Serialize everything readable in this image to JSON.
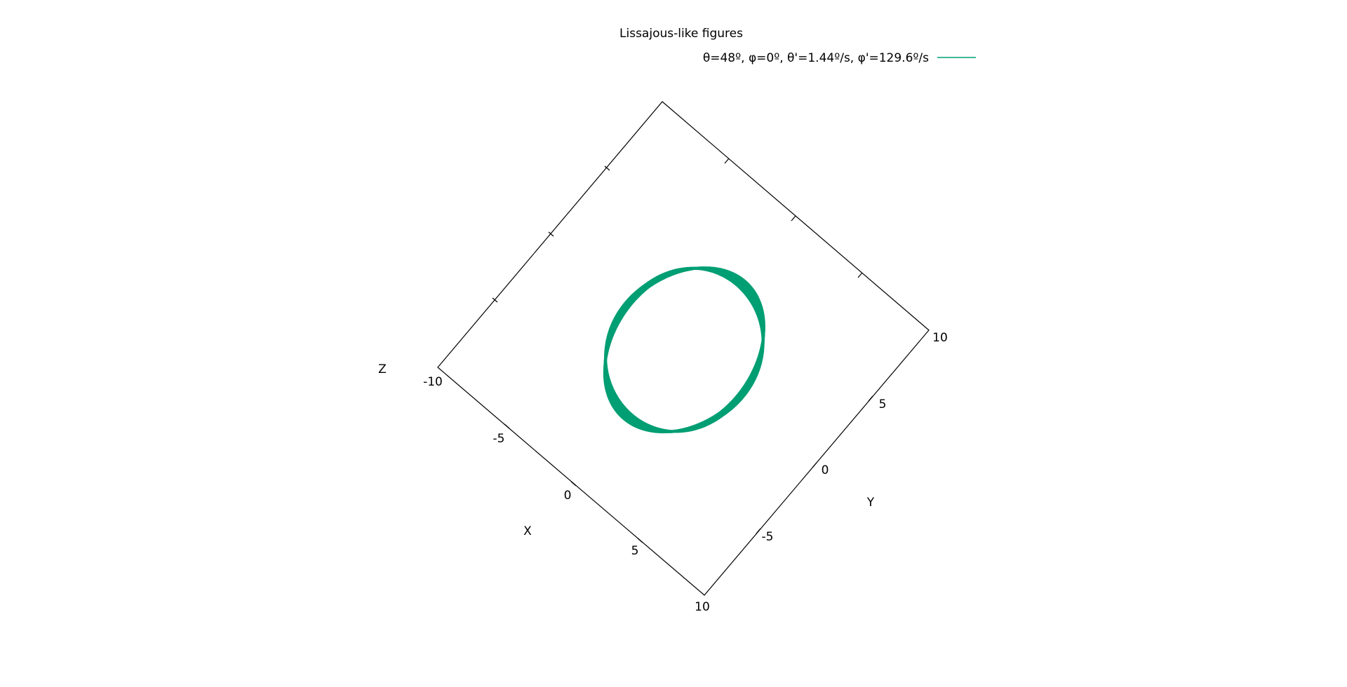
{
  "chart_data": {
    "type": "line",
    "projection": "3d",
    "title": "Lissajous-like figures",
    "legend": {
      "position": "top-center",
      "entries": [
        {
          "label": "θ=48º, φ=0º, θ'=1.44º/s, φ'=129.6º/s",
          "color": "#009e73"
        }
      ]
    },
    "axes": {
      "x": {
        "label": "X",
        "range": [
          -10,
          10
        ],
        "ticks": [
          -10,
          -5,
          0,
          5,
          10
        ],
        "tick_labels": [
          "-5",
          "0",
          "5",
          "10"
        ]
      },
      "y": {
        "label": "Y",
        "range": [
          -10,
          10
        ],
        "ticks": [
          -10,
          -5,
          0,
          5,
          10
        ],
        "tick_labels": [
          "-5",
          "0",
          "5",
          "10"
        ]
      },
      "z": {
        "label": "Z",
        "range": [
          -10,
          10
        ],
        "tick_labels": [
          "-10"
        ]
      }
    },
    "grid": false,
    "series": [
      {
        "color": "#009e73",
        "curve": "closed ring traced on a sphere, radius 10",
        "sphere_radius": 10,
        "theta0_deg": 48,
        "phi0_deg": 0,
        "theta_rate_deg_per_s": 1.44,
        "phi_rate_deg_per_s": 129.6,
        "samples": 500
      }
    ]
  }
}
